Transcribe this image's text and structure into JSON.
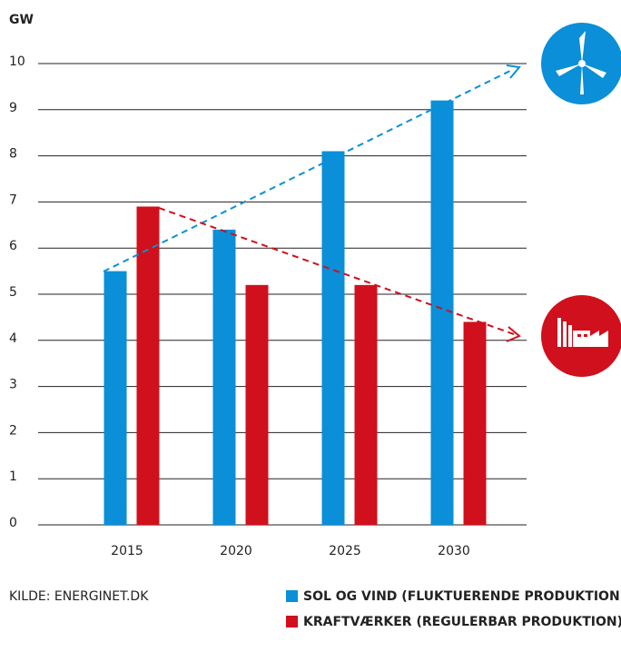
{
  "chart_data": {
    "type": "bar",
    "y_label": "GW",
    "categories": [
      "2015",
      "2020",
      "2025",
      "2030"
    ],
    "series": [
      {
        "name": "SOL OG VIND (FLUKTUERENDE PRODUKTION)",
        "color": "#0a8fd8",
        "values": [
          5.5,
          6.4,
          8.1,
          9.2
        ]
      },
      {
        "name": "KRAFTVÆRKER (REGULERBAR PRODUKTION)",
        "color": "#d0101c",
        "values": [
          6.9,
          5.2,
          5.2,
          4.4
        ]
      }
    ],
    "ylim": [
      0,
      10
    ],
    "yticks": [
      0,
      1,
      2,
      3,
      4,
      5,
      6,
      7,
      8,
      9,
      10
    ],
    "grid": true,
    "source": "KILDE: ENERGINET.DK"
  }
}
